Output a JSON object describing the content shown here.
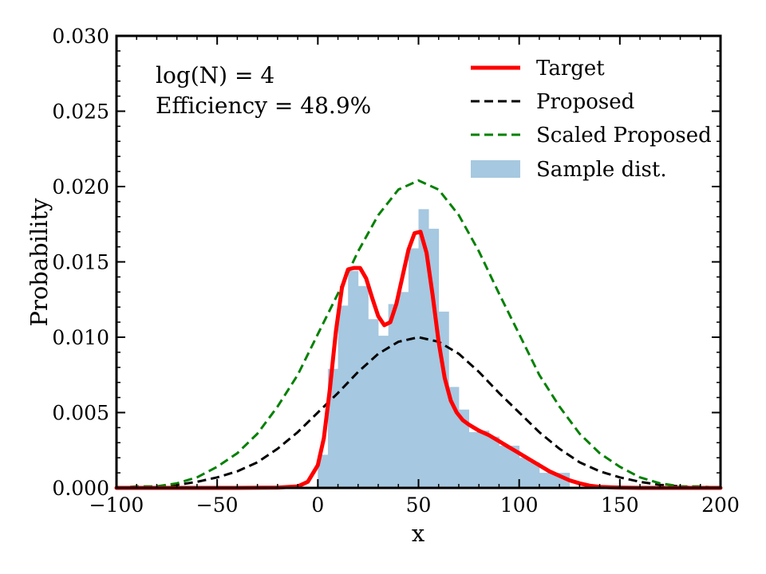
{
  "chart_data": {
    "type": "line",
    "title": "",
    "xlabel": "x",
    "ylabel": "Probability",
    "xlim": [
      -100,
      200
    ],
    "ylim": [
      0,
      0.03
    ],
    "xticks": [
      -100,
      -50,
      0,
      50,
      100,
      150,
      200
    ],
    "xtick_labels": [
      "−100",
      "−50",
      "0",
      "50",
      "100",
      "150",
      "200"
    ],
    "yticks": [
      0,
      0.005,
      0.01,
      0.015,
      0.02,
      0.025,
      0.03
    ],
    "ytick_labels": [
      "0.000",
      "0.005",
      "0.010",
      "0.015",
      "0.020",
      "0.025",
      "0.030"
    ],
    "grid": false,
    "legend_position": "top-right",
    "annotations": [
      "log(N) = 4",
      "Efficiency = 48.9%"
    ],
    "series": [
      {
        "name": "Target",
        "kind": "line",
        "style": "solid",
        "color": "#ff0000",
        "x": [
          -100,
          -40,
          -20,
          -10,
          -5,
          0,
          3,
          6,
          9,
          12,
          15,
          18,
          21,
          24,
          27,
          30,
          33,
          36,
          39,
          42,
          45,
          48,
          51,
          54,
          57,
          60,
          63,
          66,
          69,
          72,
          75,
          80,
          85,
          90,
          95,
          100,
          105,
          110,
          115,
          120,
          125,
          130,
          135,
          140,
          150,
          160,
          200
        ],
        "y": [
          0,
          0,
          2e-05,
          0.0001,
          0.0004,
          0.0015,
          0.0033,
          0.0066,
          0.0104,
          0.0133,
          0.0145,
          0.0146,
          0.0146,
          0.0139,
          0.0126,
          0.0114,
          0.0108,
          0.011,
          0.0122,
          0.014,
          0.0158,
          0.0169,
          0.017,
          0.0156,
          0.0128,
          0.0097,
          0.0073,
          0.0058,
          0.005,
          0.0045,
          0.0042,
          0.0038,
          0.0035,
          0.0031,
          0.0027,
          0.0023,
          0.0019,
          0.0015,
          0.0011,
          0.0008,
          0.0005,
          0.0003,
          0.00015,
          7e-05,
          2e-05,
          0,
          0
        ]
      },
      {
        "name": "Proposed",
        "kind": "line",
        "style": "dashed",
        "color": "#000000",
        "x": [
          -100,
          -90,
          -80,
          -70,
          -60,
          -50,
          -40,
          -30,
          -20,
          -10,
          0,
          10,
          20,
          30,
          40,
          50,
          60,
          70,
          80,
          90,
          100,
          110,
          120,
          130,
          140,
          150,
          160,
          170,
          180,
          190,
          200
        ],
        "y": [
          0.0,
          0.0,
          0.0001,
          0.0002,
          0.0004,
          0.0007,
          0.0011,
          0.0017,
          0.0026,
          0.0037,
          0.005,
          0.0063,
          0.0077,
          0.0089,
          0.0097,
          0.01,
          0.0097,
          0.0089,
          0.0077,
          0.0063,
          0.005,
          0.0037,
          0.0026,
          0.0017,
          0.0011,
          0.0007,
          0.0004,
          0.0002,
          0.0001,
          0.0,
          0.0
        ]
      },
      {
        "name": "Scaled Proposed",
        "kind": "line",
        "style": "dashed",
        "color": "#008000",
        "x": [
          -100,
          -90,
          -80,
          -70,
          -60,
          -50,
          -40,
          -30,
          -20,
          -10,
          0,
          10,
          20,
          30,
          40,
          50,
          60,
          70,
          80,
          90,
          100,
          110,
          120,
          130,
          140,
          150,
          160,
          170,
          180,
          190,
          200
        ],
        "y": [
          0.0,
          0.0001,
          0.0001,
          0.0003,
          0.0007,
          0.0014,
          0.0023,
          0.0036,
          0.0054,
          0.0075,
          0.0102,
          0.0129,
          0.0157,
          0.0181,
          0.0198,
          0.0204,
          0.0198,
          0.0181,
          0.0157,
          0.0129,
          0.0102,
          0.0075,
          0.0054,
          0.0036,
          0.0023,
          0.0014,
          0.0007,
          0.0003,
          0.0001,
          0.0001,
          0.0
        ]
      }
    ],
    "histogram": {
      "name": "Sample dist.",
      "color": "#a6c8e0",
      "bin_edges": [
        0,
        5,
        10,
        15,
        20,
        25,
        30,
        35,
        40,
        45,
        50,
        55,
        60,
        65,
        70,
        75,
        80,
        85,
        90,
        95,
        100,
        105,
        110,
        115,
        120,
        125
      ],
      "values": [
        0.0022,
        0.0079,
        0.0121,
        0.0144,
        0.0134,
        0.0112,
        0.0101,
        0.0122,
        0.013,
        0.0159,
        0.0185,
        0.0172,
        0.0117,
        0.0067,
        0.0052,
        0.0037,
        0.0038,
        0.0034,
        0.0028,
        0.0028,
        0.002,
        0.0017,
        0.001,
        0.001,
        0.001
      ]
    },
    "legend_order": [
      "Target",
      "Proposed",
      "Scaled Proposed",
      "Sample dist."
    ]
  }
}
